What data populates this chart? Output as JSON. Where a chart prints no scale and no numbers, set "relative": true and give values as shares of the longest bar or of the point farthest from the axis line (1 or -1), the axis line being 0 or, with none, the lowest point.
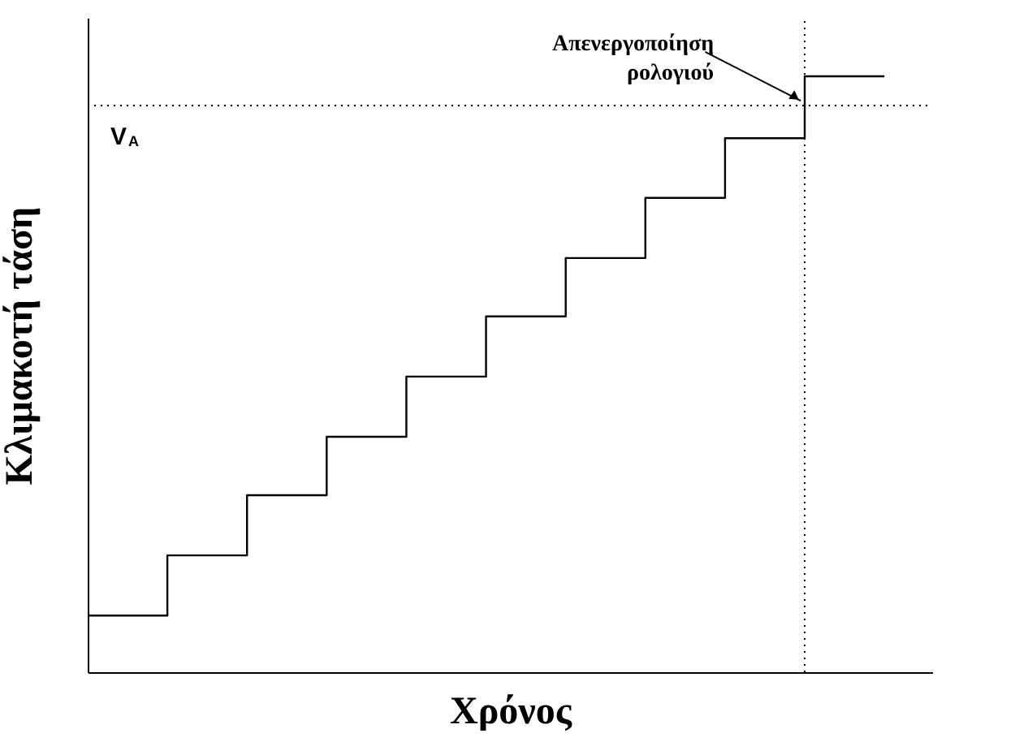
{
  "chart_data": {
    "type": "step",
    "relative": true,
    "xlabel": "Χρόνος",
    "ylabel": "Κλιμακοτή τάση",
    "categories": [
      null,
      null,
      null,
      null,
      null,
      null,
      null,
      null,
      null,
      null,
      null
    ],
    "series": [
      {
        "color": "#000000",
        "values": [
          0.095,
          0.196,
          0.297,
          0.395,
          0.496,
          0.597,
          0.695,
          0.796,
          0.896,
          1,
          1
        ]
      }
    ],
    "ref_lines": [
      {
        "axis": "y",
        "value": 0.951,
        "label": "V$_{A}$",
        "color": "#000000",
        "line_style": "dotted"
      }
    ],
    "annotations": [
      "Απενεργοποίηση\nρολογιού"
    ],
    "grid": false,
    "tick_labels": false
  }
}
